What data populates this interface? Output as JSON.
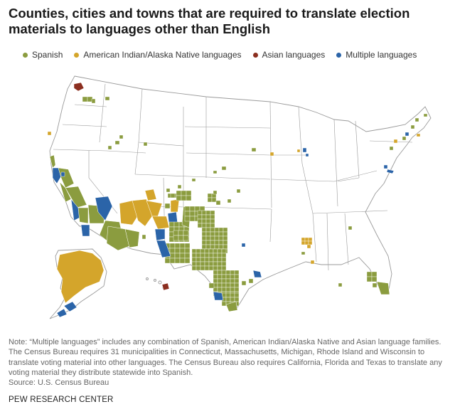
{
  "title": "Counties, cities and towns that are required to translate election materials to languages other than English",
  "legend": [
    {
      "label": "Spanish",
      "color": "#8b9c3f"
    },
    {
      "label": "American Indian/Alaska Native languages",
      "color": "#d4a52b"
    },
    {
      "label": "Asian languages",
      "color": "#8b2e1f"
    },
    {
      "label": "Multiple languages",
      "color": "#2b64a8"
    }
  ],
  "colors": {
    "state_fill": "#ffffff",
    "state_border": "#9a9a9a",
    "county_border": "#ffffff"
  },
  "note": "Note: “Multiple languages” includes any combination of Spanish, American Indian/Alaska Native and Asian language families. The Census Bureau requires 31 municipalities in Connecticut, Massachusetts, Michigan, Rhode Island and Wisconsin to translate voting material into other languages. The Census Bureau also requires California, Florida and Texas to translate any voting material they distribute statewide into Spanish.",
  "source": "Source: U.S. Census Bureau",
  "brand": "PEW RESEARCH CENTER"
}
